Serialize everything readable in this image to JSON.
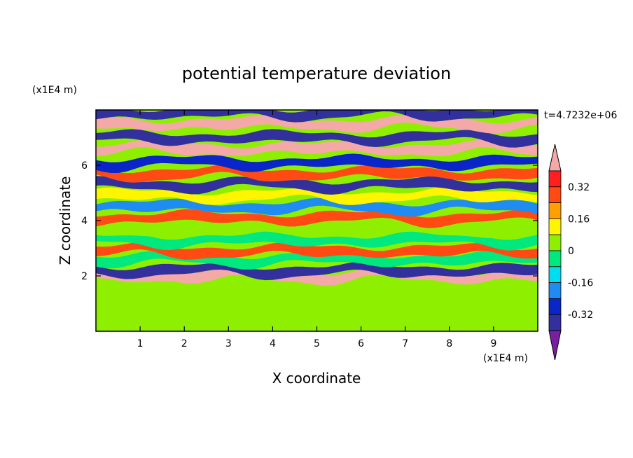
{
  "chart_data": {
    "type": "heatmap",
    "title": "potential temperature deviation",
    "xlabel": "X coordinate",
    "ylabel": "Z coordinate",
    "x_unit": "(x1E4 m)",
    "y_unit": "(x1E4 m)",
    "time_label": "t=4.7232e+06",
    "xlim": [
      0,
      10
    ],
    "ylim": [
      0,
      8
    ],
    "x_ticks": [
      1,
      2,
      3,
      4,
      5,
      6,
      7,
      8,
      9
    ],
    "y_ticks": [
      2,
      4,
      6
    ],
    "colorbar": {
      "levels": [
        -0.4,
        -0.32,
        -0.24,
        -0.16,
        -0.08,
        0,
        0.08,
        0.16,
        0.24,
        0.32,
        0.4
      ],
      "labels": [
        "0.32",
        "0.16",
        "0",
        "-0.16",
        "-0.32"
      ],
      "label_values": [
        0.32,
        0.16,
        0,
        -0.16,
        -0.32
      ],
      "colors": [
        "#7a1fa2",
        "#32309c",
        "#0a25c8",
        "#1e8cf0",
        "#00dcf0",
        "#00e87e",
        "#8ef000",
        "#fff500",
        "#ffa000",
        "#ff4a14",
        "#ff1f1f",
        "#f4a8a8"
      ],
      "extend": "both"
    },
    "bands": [
      {
        "z": 0.5,
        "value": 0.04
      },
      {
        "z": 1.4,
        "value": 0.06
      },
      {
        "z": 2.0,
        "value": 0.4
      },
      {
        "z": 2.2,
        "value": -0.34
      },
      {
        "z": 2.6,
        "value": -0.06
      },
      {
        "z": 2.9,
        "value": 0.3
      },
      {
        "z": 3.3,
        "value": -0.05
      },
      {
        "z": 3.7,
        "value": 0.06
      },
      {
        "z": 4.1,
        "value": 0.3
      },
      {
        "z": 4.5,
        "value": -0.2
      },
      {
        "z": 4.9,
        "value": 0.12
      },
      {
        "z": 5.3,
        "value": -0.35
      },
      {
        "z": 5.7,
        "value": 0.3
      },
      {
        "z": 6.1,
        "value": -0.3
      },
      {
        "z": 6.6,
        "value": 0.4
      },
      {
        "z": 7.0,
        "value": -0.38
      },
      {
        "z": 7.5,
        "value": 0.42
      },
      {
        "z": 7.9,
        "value": -0.4
      }
    ]
  }
}
